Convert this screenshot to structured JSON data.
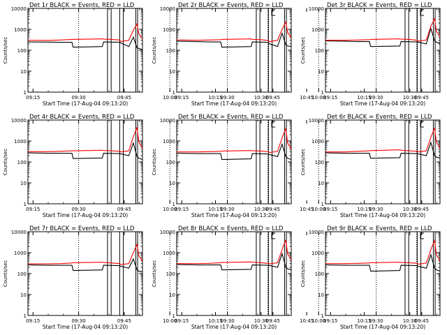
{
  "chart_data": {
    "type": "line",
    "layout": "3x3 grid",
    "ylabel": "Counts/sec",
    "xlabel": "Start Time (17-Aug-04 09:13:20)",
    "y_scale": "log",
    "ylim": [
      1,
      10000
    ],
    "y_ticks": [
      1,
      10,
      100,
      1000,
      10000
    ],
    "y_tick_labels": [
      "1",
      "10",
      "100",
      "1000",
      "10000"
    ],
    "xlim_minutes": [
      13.33,
      51.0
    ],
    "x_ticks_minutes": [
      15,
      30,
      45,
      60,
      75,
      90,
      105
    ],
    "x_tick_labels": [
      "09:15",
      "09:30",
      "09:45",
      "10:00",
      "10:15",
      "10:30",
      "10:45"
    ],
    "solid_vlines_minutes": [
      39.5,
      40.7,
      43.5,
      44.7,
      48.8,
      49.4
    ],
    "dotted_vlines_minutes": [
      30,
      60,
      92.2
    ],
    "bracket_marker_minutes": 93.5,
    "x_minutes": [
      13.4,
      20,
      24,
      27.8,
      28.2,
      33,
      37.8,
      38.2,
      41,
      43.4,
      44.0,
      46.5,
      48.0,
      49.2,
      49.8,
      51.0
    ],
    "panels": [
      {
        "title": "Det 1r  BLACK = Events, RED = LLD",
        "series": [
          {
            "name": "Events",
            "color": "#000000",
            "values": [
              250,
              245,
              240,
              240,
              140,
              145,
              150,
              250,
              245,
              240,
              220,
              150,
              420,
              130,
              120,
              110
            ]
          },
          {
            "name": "LLD",
            "color": "#ff0000",
            "values": [
              300,
              295,
              310,
              330,
              330,
              340,
              350,
              340,
              330,
              310,
              260,
              300,
              900,
              1800,
              600,
              350
            ]
          }
        ]
      },
      {
        "title": "Det 2r  BLACK = Events, RED = LLD",
        "series": [
          {
            "name": "Events",
            "color": "#000000",
            "values": [
              270,
              260,
              250,
              250,
              140,
              145,
              150,
              250,
              245,
              240,
              200,
              150,
              650,
              180,
              160,
              150
            ]
          },
          {
            "name": "LLD",
            "color": "#ff0000",
            "values": [
              310,
              300,
              310,
              320,
              330,
              340,
              350,
              330,
              320,
              290,
              260,
              300,
              1000,
              2200,
              700,
              400
            ]
          }
        ]
      },
      {
        "title": "Det 3r  BLACK = Events, RED = LLD",
        "series": [
          {
            "name": "Events",
            "color": "#000000",
            "values": [
              280,
              270,
              260,
              260,
              150,
              155,
              160,
              260,
              255,
              250,
              240,
              200,
              1100,
              280,
              240,
              220
            ]
          },
          {
            "name": "LLD",
            "color": "#ff0000",
            "values": [
              300,
              300,
              310,
              320,
              330,
              340,
              350,
              340,
              330,
              300,
              270,
              310,
              1400,
              3200,
              800,
              450
            ]
          }
        ]
      },
      {
        "title": "Det 4r  BLACK = Events, RED = LLD",
        "series": [
          {
            "name": "Events",
            "color": "#000000",
            "values": [
              270,
              260,
              260,
              260,
              145,
              150,
              155,
              260,
              255,
              250,
              240,
              200,
              800,
              180,
              150,
              130
            ]
          },
          {
            "name": "LLD",
            "color": "#ff0000",
            "values": [
              310,
              310,
              320,
              340,
              340,
              350,
              360,
              350,
              340,
              320,
              300,
              340,
              1600,
              4500,
              900,
              450
            ]
          }
        ]
      },
      {
        "title": "Det 5r  BLACK = Events, RED = LLD",
        "series": [
          {
            "name": "Events",
            "color": "#000000",
            "values": [
              260,
              250,
              250,
              250,
              130,
              135,
              140,
              250,
              245,
              240,
              220,
              180,
              700,
              180,
              150,
              130
            ]
          },
          {
            "name": "LLD",
            "color": "#ff0000",
            "values": [
              300,
              300,
              310,
              320,
              330,
              340,
              350,
              340,
              330,
              310,
              280,
              320,
              1400,
              4000,
              800,
              400
            ]
          }
        ]
      },
      {
        "title": "Det 6r  BLACK = Events, RED = LLD",
        "series": [
          {
            "name": "Events",
            "color": "#000000",
            "values": [
              270,
              260,
              260,
              260,
              150,
              155,
              160,
              260,
              255,
              250,
              240,
              200,
              850,
              200,
              170,
              150
            ]
          },
          {
            "name": "LLD",
            "color": "#ff0000",
            "values": [
              300,
              300,
              320,
              340,
              350,
              360,
              380,
              360,
              340,
              320,
              300,
              340,
              1500,
              4200,
              900,
              450
            ]
          }
        ]
      },
      {
        "title": "Det 7r  BLACK = Events, RED = LLD",
        "series": [
          {
            "name": "Events",
            "color": "#000000",
            "values": [
              260,
              250,
              250,
              250,
              140,
              145,
              150,
              250,
              245,
              240,
              220,
              180,
              500,
              150,
              130,
              120
            ]
          },
          {
            "name": "LLD",
            "color": "#ff0000",
            "values": [
              290,
              290,
              300,
              320,
              330,
              340,
              350,
              340,
              320,
              300,
              270,
              300,
              1000,
              2500,
              700,
              400
            ]
          }
        ]
      },
      {
        "title": "Det 8r  BLACK = Events, RED = LLD",
        "series": [
          {
            "name": "Events",
            "color": "#000000",
            "values": [
              270,
              260,
              260,
              260,
              150,
              155,
              160,
              260,
              255,
              250,
              240,
              200,
              900,
              200,
              170,
              150
            ]
          },
          {
            "name": "LLD",
            "color": "#ff0000",
            "values": [
              300,
              300,
              310,
              330,
              340,
              350,
              360,
              350,
              330,
              310,
              290,
              330,
              1400,
              4000,
              900,
              450
            ]
          }
        ]
      },
      {
        "title": "Det 9r  BLACK = Events, RED = LLD",
        "series": [
          {
            "name": "Events",
            "color": "#000000",
            "values": [
              260,
              250,
              250,
              250,
              130,
              135,
              140,
              250,
              245,
              240,
              220,
              180,
              800,
              180,
              150,
              130
            ]
          },
          {
            "name": "LLD",
            "color": "#ff0000",
            "values": [
              300,
              300,
              310,
              320,
              330,
              340,
              350,
              340,
              330,
              310,
              280,
              320,
              1400,
              3800,
              800,
              400
            ]
          }
        ]
      }
    ]
  }
}
